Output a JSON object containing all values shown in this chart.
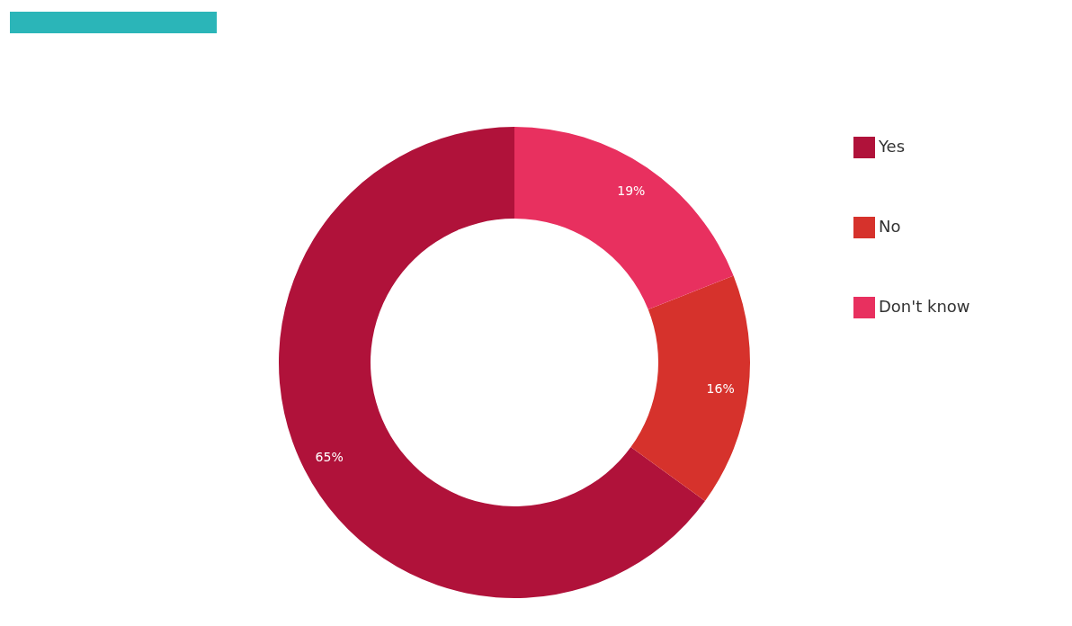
{
  "chart_data": {
    "type": "donut",
    "categories": [
      "Yes",
      "No",
      "Don't know"
    ],
    "values": [
      65,
      16,
      19
    ],
    "colors": [
      "#b0123a",
      "#d6322c",
      "#e8305f"
    ],
    "value_labels": [
      "65%",
      "16%",
      "19%"
    ],
    "legend": "top right"
  }
}
